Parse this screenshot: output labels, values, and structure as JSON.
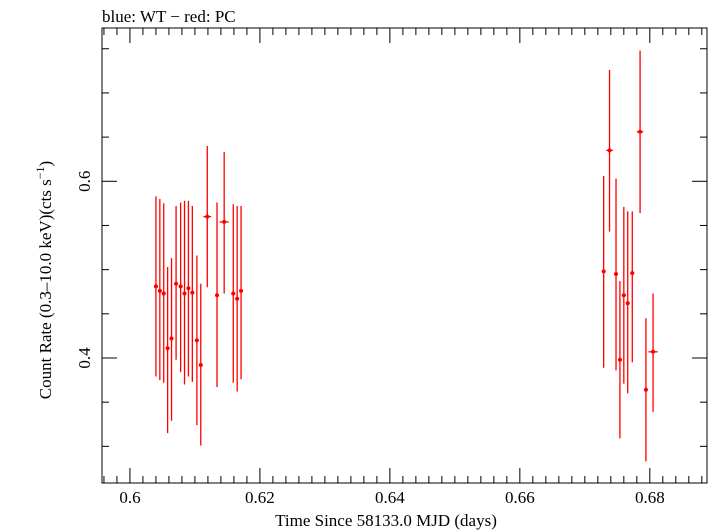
{
  "chart_data": {
    "type": "scatter",
    "title": "blue: WT − red: PC",
    "xlabel": "Time Since 58133.0 MJD (days)",
    "ylabel_main": "Count Rate (0.3–10.0 keV)(cts s",
    "ylabel_sup": "−1",
    "ylabel_close": ")",
    "xlim": [
      0.5957,
      0.6888
    ],
    "ylim": [
      0.2585,
      0.7735
    ],
    "x_ticks": [
      {
        "value": 0.6,
        "label": "0.6"
      },
      {
        "value": 0.62,
        "label": "0.62"
      },
      {
        "value": 0.64,
        "label": "0.64"
      },
      {
        "value": 0.66,
        "label": "0.66"
      },
      {
        "value": 0.68,
        "label": "0.68"
      }
    ],
    "x_minor_step": 0.002,
    "y_ticks": [
      {
        "value": 0.4,
        "label": "0.4"
      },
      {
        "value": 0.6,
        "label": "0.6"
      }
    ],
    "y_minor_step": 0.05,
    "color": "#ff0000",
    "series": [
      {
        "name": "PC",
        "color": "#ff0000",
        "points": [
          {
            "x": 0.604,
            "xerr": 0.0003,
            "y": 0.481,
            "ylo": 0.379,
            "yhi": 0.583
          },
          {
            "x": 0.6046,
            "xerr": 0.0003,
            "y": 0.476,
            "ylo": 0.375,
            "yhi": 0.58
          },
          {
            "x": 0.6052,
            "xerr": 0.0003,
            "y": 0.473,
            "ylo": 0.372,
            "yhi": 0.575
          },
          {
            "x": 0.6058,
            "xerr": 0.0003,
            "y": 0.411,
            "ylo": 0.315,
            "yhi": 0.503
          },
          {
            "x": 0.6064,
            "xerr": 0.0003,
            "y": 0.422,
            "ylo": 0.329,
            "yhi": 0.513
          },
          {
            "x": 0.6071,
            "xerr": 0.0003,
            "y": 0.484,
            "ylo": 0.398,
            "yhi": 0.572
          },
          {
            "x": 0.6078,
            "xerr": 0.0003,
            "y": 0.481,
            "ylo": 0.384,
            "yhi": 0.576
          },
          {
            "x": 0.6084,
            "xerr": 0.0003,
            "y": 0.473,
            "ylo": 0.37,
            "yhi": 0.578
          },
          {
            "x": 0.609,
            "xerr": 0.0003,
            "y": 0.479,
            "ylo": 0.379,
            "yhi": 0.578
          },
          {
            "x": 0.6096,
            "xerr": 0.0003,
            "y": 0.474,
            "ylo": 0.373,
            "yhi": 0.572
          },
          {
            "x": 0.6103,
            "xerr": 0.0003,
            "y": 0.42,
            "ylo": 0.324,
            "yhi": 0.516
          },
          {
            "x": 0.6109,
            "xerr": 0.0003,
            "y": 0.392,
            "ylo": 0.301,
            "yhi": 0.484
          },
          {
            "x": 0.6119,
            "xerr": 0.0006,
            "y": 0.56,
            "ylo": 0.48,
            "yhi": 0.64
          },
          {
            "x": 0.6134,
            "xerr": 0.0003,
            "y": 0.471,
            "ylo": 0.367,
            "yhi": 0.576
          },
          {
            "x": 0.6145,
            "xerr": 0.0007,
            "y": 0.554,
            "ylo": 0.473,
            "yhi": 0.633
          },
          {
            "x": 0.6159,
            "xerr": 0.0003,
            "y": 0.473,
            "ylo": 0.372,
            "yhi": 0.574
          },
          {
            "x": 0.6165,
            "xerr": 0.0003,
            "y": 0.467,
            "ylo": 0.362,
            "yhi": 0.572
          },
          {
            "x": 0.6171,
            "xerr": 0.0003,
            "y": 0.476,
            "ylo": 0.376,
            "yhi": 0.572
          },
          {
            "x": 0.6729,
            "xerr": 0.0003,
            "y": 0.498,
            "ylo": 0.389,
            "yhi": 0.606
          },
          {
            "x": 0.6738,
            "xerr": 0.0005,
            "y": 0.635,
            "ylo": 0.543,
            "yhi": 0.726
          },
          {
            "x": 0.6748,
            "xerr": 0.0003,
            "y": 0.495,
            "ylo": 0.386,
            "yhi": 0.603
          },
          {
            "x": 0.6754,
            "xerr": 0.0003,
            "y": 0.398,
            "ylo": 0.309,
            "yhi": 0.487
          },
          {
            "x": 0.676,
            "xerr": 0.0003,
            "y": 0.471,
            "ylo": 0.371,
            "yhi": 0.571
          },
          {
            "x": 0.6766,
            "xerr": 0.0003,
            "y": 0.462,
            "ylo": 0.36,
            "yhi": 0.566
          },
          {
            "x": 0.6773,
            "xerr": 0.0003,
            "y": 0.496,
            "ylo": 0.395,
            "yhi": 0.566
          },
          {
            "x": 0.6785,
            "xerr": 0.0005,
            "y": 0.656,
            "ylo": 0.564,
            "yhi": 0.748
          },
          {
            "x": 0.6794,
            "xerr": 0.0003,
            "y": 0.364,
            "ylo": 0.283,
            "yhi": 0.445
          },
          {
            "x": 0.6805,
            "xerr": 0.0007,
            "y": 0.407,
            "ylo": 0.339,
            "yhi": 0.473
          }
        ]
      }
    ]
  }
}
